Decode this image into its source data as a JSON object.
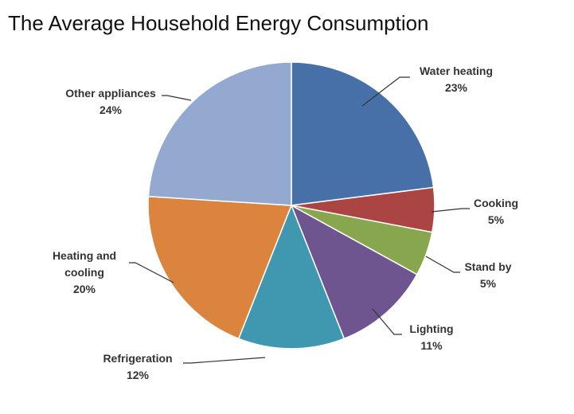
{
  "chart_data": {
    "type": "pie",
    "title": "The Average Household Energy Consumption",
    "slices": [
      {
        "label": "Water heating",
        "value": 23,
        "pct_label": "23%",
        "color": "#4670a7"
      },
      {
        "label": "Cooking",
        "value": 5,
        "pct_label": "5%",
        "color": "#ab4543"
      },
      {
        "label": "Stand by",
        "value": 5,
        "pct_label": "5%",
        "color": "#87a64e"
      },
      {
        "label": "Lighting",
        "value": 11,
        "pct_label": "11%",
        "color": "#6f5590"
      },
      {
        "label": "Refrigeration",
        "value": 12,
        "pct_label": "12%",
        "color": "#3f98b0"
      },
      {
        "label": "Heating and cooling",
        "value": 20,
        "pct_label": "20%",
        "color": "#db843d"
      },
      {
        "label": "Other appliances",
        "value": 24,
        "pct_label": "24%",
        "color": "#93a9cf"
      }
    ],
    "legend": "none",
    "data_labels": "outside-with-leader-lines"
  }
}
